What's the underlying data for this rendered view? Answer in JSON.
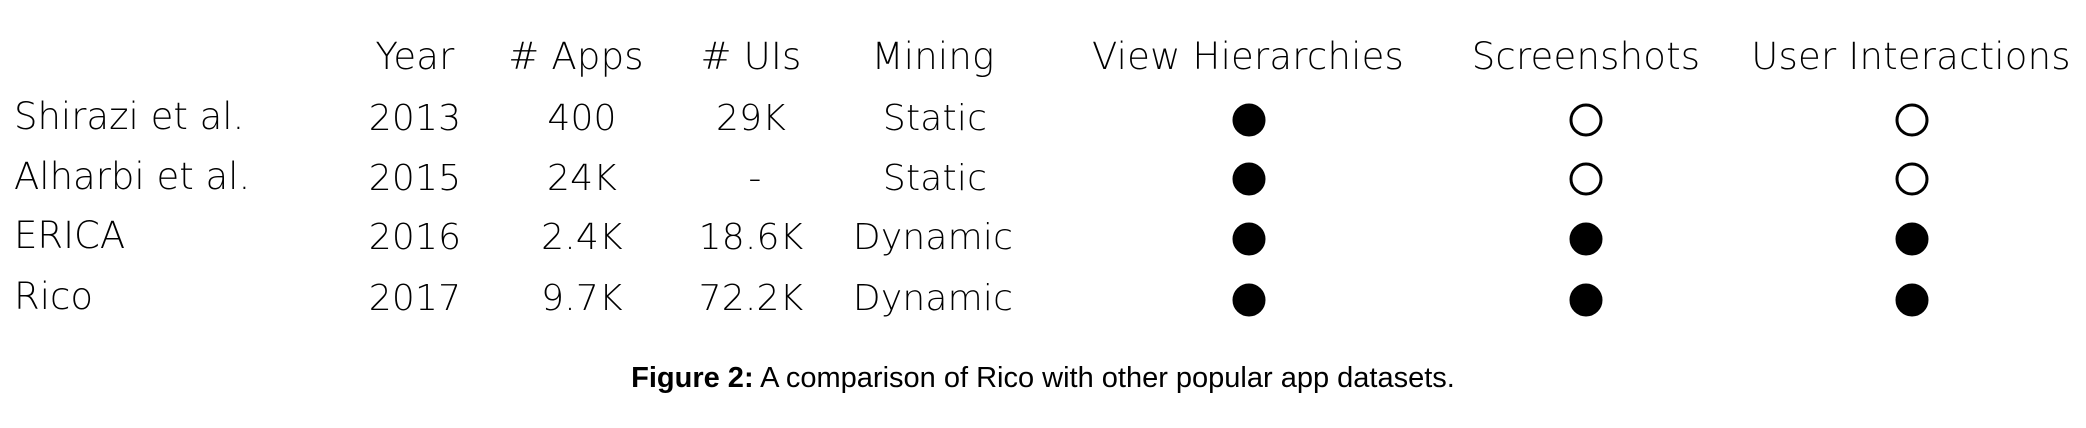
{
  "table": {
    "headers": {
      "year": "Year",
      "apps": "# Apps",
      "uis": "# UIs",
      "mining": "Mining",
      "view_hierarchies": "View Hierarchies",
      "screenshots": "Screenshots",
      "user_interactions": "User Interactions"
    },
    "rows": [
      {
        "name": "Shirazi et al.",
        "year": "2013",
        "apps": "400",
        "uis": "29K",
        "mining": "Static",
        "view_hierarchies": true,
        "screenshots": false,
        "user_interactions": false
      },
      {
        "name": "Alharbi et al.",
        "year": "2015",
        "apps": "24K",
        "uis": "-",
        "mining": "Static",
        "view_hierarchies": true,
        "screenshots": false,
        "user_interactions": false
      },
      {
        "name": "ERICA",
        "year": "2016",
        "apps": "2.4K",
        "uis": "18.6K",
        "mining": "Dynamic",
        "view_hierarchies": true,
        "screenshots": true,
        "user_interactions": true
      },
      {
        "name": "Rico",
        "year": "2017",
        "apps": "9.7K",
        "uis": "72.2K",
        "mining": "Dynamic",
        "view_hierarchies": true,
        "screenshots": true,
        "user_interactions": true
      }
    ]
  },
  "caption": {
    "label": "Figure 2:",
    "text": " A comparison of Rico with other popular app datasets."
  }
}
